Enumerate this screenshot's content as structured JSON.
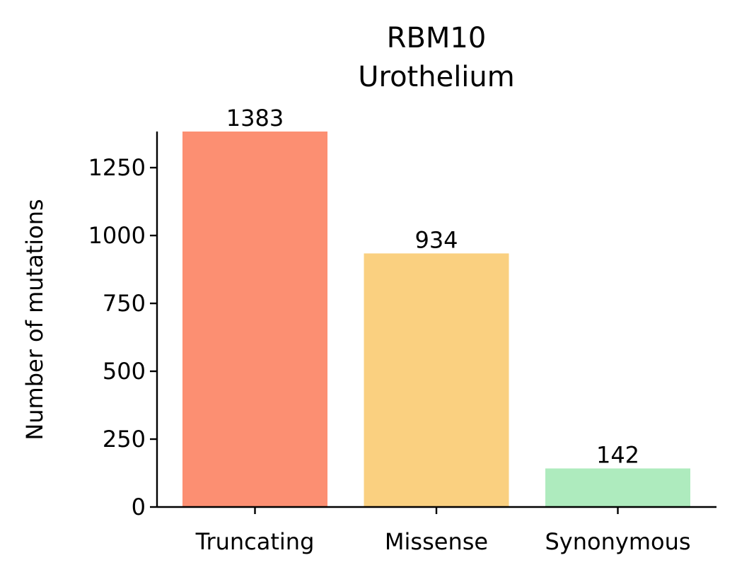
{
  "chart_data": {
    "type": "bar",
    "title": [
      "RBM10",
      "Urothelium"
    ],
    "categories": [
      "Truncating",
      "Missense",
      "Synonymous"
    ],
    "values": [
      1383,
      934,
      142
    ],
    "value_labels": [
      "1383",
      "934",
      "142"
    ],
    "colors": [
      "#fc8f72",
      "#fad080",
      "#aeebbe"
    ],
    "xlabel": "",
    "ylabel": "Number of mutations",
    "ylim": [
      0,
      1383
    ],
    "yticks": [
      0,
      250,
      500,
      750,
      1000,
      1250
    ],
    "ytick_labels": [
      "0",
      "250",
      "500",
      "750",
      "1000",
      "1250"
    ],
    "grid": false,
    "legend": false
  }
}
